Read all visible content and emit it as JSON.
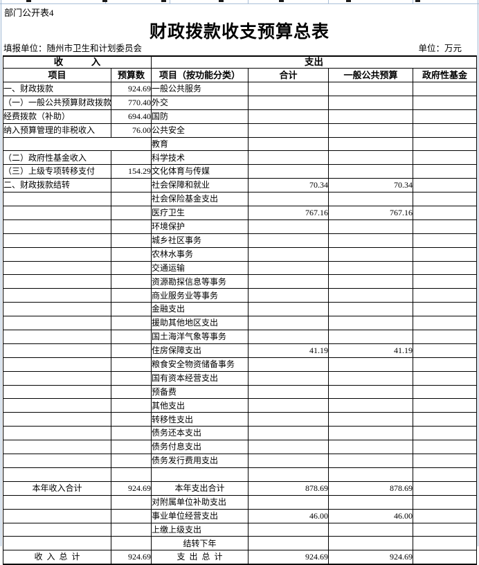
{
  "page": {
    "sheet_label": "部门公开表4",
    "title": "财政拨款收支预算总表",
    "reporting_unit": "填报单位：随州市卫生和计划委员会",
    "unit_note": "单位：万元"
  },
  "table": {
    "group_headers": {
      "income": "收　　　入",
      "expense": "支出"
    },
    "columns": [
      "项目",
      "预算数",
      "项目（按功能分类）",
      "合计",
      "一般公共预算",
      "政府性基金"
    ],
    "rows": [
      {
        "income": {
          "label": "一、财政拨款",
          "indent": 0,
          "value": "924.69"
        },
        "expense": {
          "label": "一般公共服务"
        }
      },
      {
        "income": {
          "label": "（一）一般公共预算财政拨款",
          "indent": 1,
          "value": "770.40"
        },
        "expense": {
          "label": "外交"
        }
      },
      {
        "income": {
          "label": "经费拨款（补助）",
          "indent": 2,
          "value": "694.40"
        },
        "expense": {
          "label": "国防"
        }
      },
      {
        "income": {
          "label": "纳入预算管理的非税收入",
          "indent": 2,
          "value": "76.00"
        },
        "expense": {
          "label": "公共安全"
        }
      },
      {
        "income": {
          "merged": true
        },
        "expense": {
          "label": "教育"
        }
      },
      {
        "income": {
          "label": "（二）政府性基金收入",
          "indent": 1
        },
        "expense": {
          "label": "科学技术"
        }
      },
      {
        "income": {
          "label": "（三）上级专项转移支付",
          "indent": 1,
          "value": "154.29"
        },
        "expense": {
          "label": "文化体育与传媒"
        }
      },
      {
        "income": {
          "label": "二、财政拨款结转",
          "indent": 0
        },
        "expense": {
          "label": "社会保障和就业",
          "total": "70.34",
          "general": "70.34"
        }
      },
      {
        "income": {},
        "expense": {
          "label": "社会保险基金支出"
        }
      },
      {
        "income": {},
        "expense": {
          "label": "医疗卫生",
          "total": "767.16",
          "general": "767.16"
        }
      },
      {
        "income": {},
        "expense": {
          "label": "环境保护"
        }
      },
      {
        "income": {},
        "expense": {
          "label": "城乡社区事务"
        }
      },
      {
        "income": {},
        "expense": {
          "label": "农林水事务"
        }
      },
      {
        "income": {},
        "expense": {
          "label": "交通运输"
        }
      },
      {
        "income": {},
        "expense": {
          "label": "资源勘探信息等事务"
        }
      },
      {
        "income": {},
        "expense": {
          "label": "商业服务业等事务"
        }
      },
      {
        "income": {},
        "expense": {
          "label": "金融支出"
        }
      },
      {
        "income": {},
        "expense": {
          "label": "援助其他地区支出"
        }
      },
      {
        "income": {},
        "expense": {
          "label": "国土海洋气象等事务"
        }
      },
      {
        "income": {},
        "expense": {
          "label": "住房保障支出",
          "total": "41.19",
          "general": "41.19"
        }
      },
      {
        "income": {},
        "expense": {
          "label": "粮食安全物资储备事务"
        }
      },
      {
        "income": {},
        "expense": {
          "label": "国有资本经营支出"
        }
      },
      {
        "income": {},
        "expense": {
          "label": "预备费"
        }
      },
      {
        "income": {},
        "expense": {
          "label": "其他支出"
        }
      },
      {
        "income": {},
        "expense": {
          "label": "转移性支出"
        }
      },
      {
        "income": {},
        "expense": {
          "label": "债务还本支出"
        }
      },
      {
        "income": {},
        "expense": {
          "label": "债务付息支出"
        }
      },
      {
        "income": {},
        "expense": {
          "label": "债务发行费用支出"
        }
      },
      {
        "income": {},
        "expense": {}
      },
      {
        "income": {
          "label": "本年收入合计",
          "bold": true,
          "value": "924.69"
        },
        "expense": {
          "label": "本年支出合计",
          "bold": true,
          "total": "878.69",
          "general": "878.69"
        }
      },
      {
        "income": {},
        "expense": {
          "label": "对附属单位补助支出"
        }
      },
      {
        "income": {},
        "expense": {
          "label": "事业单位经营支出",
          "total": "46.00",
          "general": "46.00"
        }
      },
      {
        "income": {},
        "expense": {
          "label": "上缴上级支出"
        }
      },
      {
        "income": {},
        "expense": {
          "label": "结转下年",
          "bold": true
        }
      },
      {
        "income": {
          "label": "收  入  总  计",
          "bold": true,
          "value": "924.69"
        },
        "expense": {
          "label": "支  出  总  计",
          "bold": true,
          "total": "924.69",
          "general": "924.69"
        }
      }
    ]
  }
}
